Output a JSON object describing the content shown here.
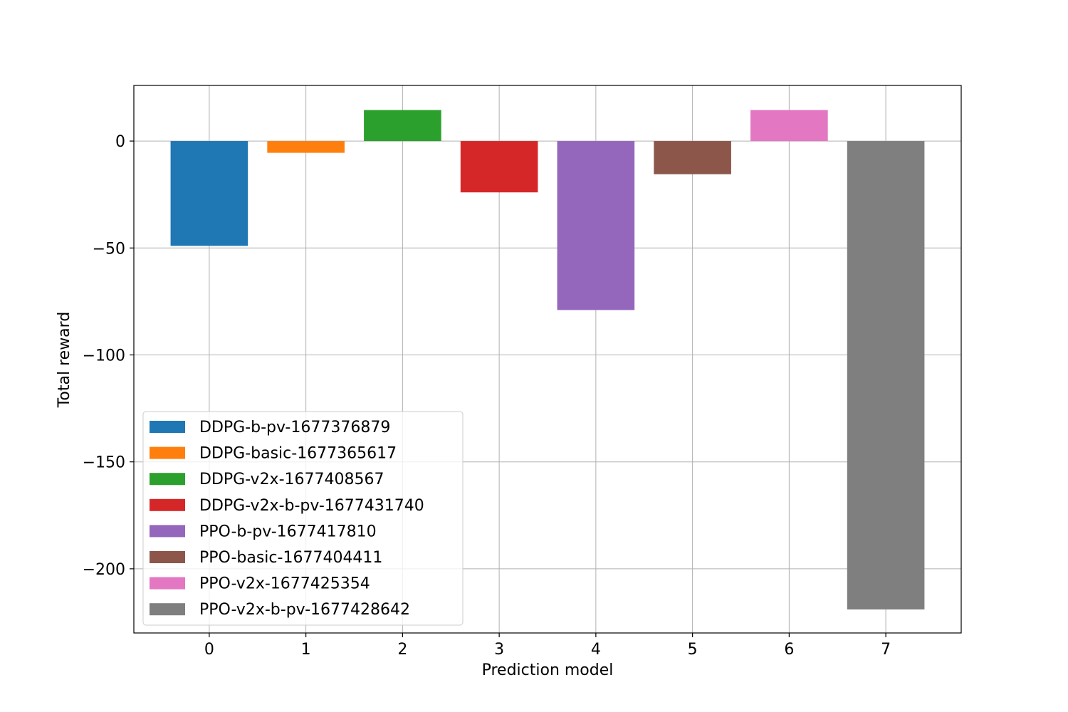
{
  "chart_data": {
    "type": "bar",
    "title": "",
    "xlabel": "Prediction model",
    "ylabel": "Total reward",
    "categories": [
      "0",
      "1",
      "2",
      "3",
      "4",
      "5",
      "6",
      "7"
    ],
    "xlim": [
      -0.78,
      7.78
    ],
    "ylim": [
      -230,
      26
    ],
    "yticks": [
      0,
      -50,
      -100,
      -150,
      -200
    ],
    "ytick_labels": [
      "0",
      "−50",
      "−100",
      "−150",
      "−200"
    ],
    "grid": true,
    "legend": "lower-left",
    "series": [
      {
        "name": "DDPG-b-pv-1677376879",
        "x": 0,
        "value": -49,
        "color": "#1f77b4"
      },
      {
        "name": "DDPG-basic-1677365617",
        "x": 1,
        "value": -5.5,
        "color": "#ff7f0e"
      },
      {
        "name": "DDPG-v2x-1677408567",
        "x": 2,
        "value": 14.5,
        "color": "#2ca02c"
      },
      {
        "name": "DDPG-v2x-b-pv-1677431740",
        "x": 3,
        "value": -24,
        "color": "#d62728"
      },
      {
        "name": "PPO-b-pv-1677417810",
        "x": 4,
        "value": -79,
        "color": "#9467bd"
      },
      {
        "name": "PPO-basic-1677404411",
        "x": 5,
        "value": -15.5,
        "color": "#8c564b"
      },
      {
        "name": "PPO-v2x-1677425354",
        "x": 6,
        "value": 14.5,
        "color": "#e377c2"
      },
      {
        "name": "PPO-v2x-b-pv-1677428642",
        "x": 7,
        "value": -219,
        "color": "#7f7f7f"
      }
    ]
  }
}
